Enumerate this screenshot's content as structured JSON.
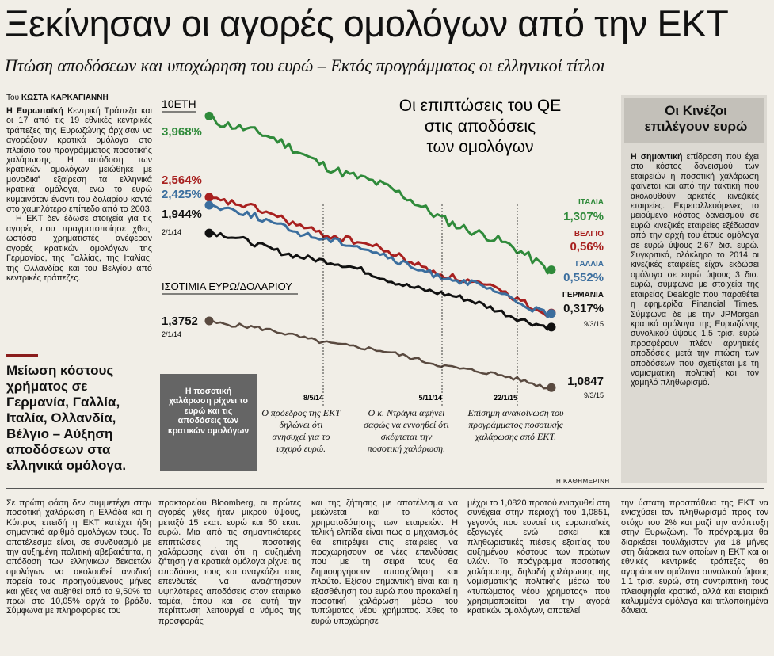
{
  "headline": "Ξεκίνησαν οι αγορές ομολόγων από την ΕΚΤ",
  "subheadline": "Πτώση αποδόσεων και υποχώρηση του ευρώ – Εκτός προγράμματος οι ελληνικοί τίτλοι",
  "byline": {
    "prefix": "Του ",
    "author": "ΚΩΣΤΑ ΚΑΡΚΑΓΙΑΝΝΗ"
  },
  "lead": {
    "p1_bold": "Η Ευρωπαϊκή",
    "p1": " Κεντρική Τράπεζα και οι 17 από τις 19 εθνικές κεντρικές τράπεζες της Ευρωζώνης άρχισαν να αγοράζουν κρατικά ομόλογα στο πλαίσιο του προγράμματος ποσοτικής χαλάρωσης. Η απόδοση των κρατικών ομολόγων μειώθηκε με μοναδική εξαίρεση τα ελληνικά κρατικά ομόλογα, ενώ το ευρώ κυμαινόταν έναντι του δολαρίου κοντά στο χαμηλότερο επίπεδο από το 2003.",
    "p2": "Η ΕΚΤ δεν έδωσε στοιχεία για τις αγορές που πραγματοποίησε χθες, ωστόσο χρηματιστές ανέφεραν αγορές κρατικών ομολόγων της Γερμανίας, της Γαλλίας, της Ιταλίας, της Ολλανδίας και του Βελγίου από κεντρικές τράπεζες."
  },
  "pullquote": "Μείωση κόστους χρήματος σε Γερμανία, Γαλλία, Ιταλία, Ολλανδία, Βέλγιο – Αύξηση αποδόσεων στα ελληνικά ομόλογα.",
  "sidebar": {
    "title": "Οι Κινέζοι επιλέγουν ευρώ",
    "text_bold": "Η σημαντική",
    "text": " επίδραση που έχει στο κόστος δανεισμού των εταιρειών η ποσοτική χαλάρωση φαίνεται και από την τακτική που ακολουθούν αρκετές κινεζικές εταιρείες. Εκμεταλλευόμενες το μειούμενο κόστος δανεισμού σε ευρώ κινεζικές εταιρείες εξέδωσαν από την αρχή του έτους ομόλογα σε ευρώ ύψους 2,67 δισ. ευρώ. Συγκριτικά, ολόκληρο το 2014 οι κινεζικές εταιρείες είχαν εκδώσει ομόλογα σε ευρώ ύψους 3 δισ. ευρώ, σύμφωνα με στοιχεία της εταιρείας Dealogic που παραθέτει η εφημερίδα Financial Times. Σύμφωνα δε με την JPMorgan κρατικά ομόλογα της Ευρωζώνης συνολικού ύψους 1,5 τρισ. ευρώ προσφέρουν πλέον αρνητικές αποδόσεις μετά την πτώση των αποδόσεων που σχετίζεται με τη νομισματική πολιτική και τον χαμηλό πληθωρισμό."
  },
  "body": {
    "c1": "Σε πρώτη φάση δεν συμμετέχει στην ποσοτική χαλάρωση η Ελλάδα και η Κύπρος επειδή η ΕΚΤ κατέχει ήδη σημαντικό αριθμό ομολόγων τους. Το αποτέλεσμα είναι, σε συνδυασμό με την αυξημένη πολιτική αβεβαιότητα, η απόδοση των ελληνικών δεκαετών ομολόγων να ακολουθεί ανοδική πορεία τους προηγούμενους μήνες και χθες να αυξηθεί από το 9,50% το πρωί στο 10,05% αργά το βράδυ. Σύμφωνα με πληροφορίες του",
    "c2": "πρακτορείου Bloomberg, οι πρώτες αγορές χθες ήταν μικρού ύψους, μεταξύ 15 εκατ. ευρώ και 50 εκατ. ευρώ. Μια από τις σημαντικότερες επιπτώσεις της ποσοτικής χαλάρωσης είναι ότι η αυξημένη ζήτηση για κρατικά ομόλογα ρίχνει τις αποδόσεις τους και αναγκάζει τους επενδυτές να αναζητήσουν υψηλότερες αποδόσεις στον εταιρικό τομέα, όπου και σε αυτή την περίπτωση λειτουργεί ο νόμος της προσφοράς",
    "c3": "και της ζήτησης με αποτέλεσμα να μειώνεται και το κόστος χρηματοδότησης των εταιρειών. Η τελική ελπίδα είναι πως ο μηχανισμός θα επιτρέψει στις εταιρείες να προχωρήσουν σε νέες επενδύσεις που με τη σειρά τους θα δημιουργήσουν απασχόληση και πλούτο. Εξίσου σημαντική είναι και η εξασθένηση του ευρώ που προκαλεί η ποσοτική χαλάρωση μέσω του τυπώματος νέου χρήματος. Χθες το ευρώ υποχώρησε",
    "c4": "μέχρι το 1,0820 προτού ενισχυθεί στη συνέχεια στην περιοχή του 1,0851, γεγονός που ευνοεί τις ευρωπαϊκές εξαγωγές ενώ ασκεί και πληθωριστικές πιέσεις εξαιτίας του αυξημένου κόστους των πρώτων υλών. Το πρόγραμμα ποσοτικής χαλάρωσης, δηλαδή χαλάρωσης της νομισματικής πολιτικής μέσω του «τυπώματος νέου χρήματος» που χρησιμοποιείται για την αγορά κρατικών ομολόγων, αποτελεί",
    "c5": "την ύστατη προσπάθεια της ΕΚΤ να ενισχύσει τον πληθωρισμό προς τον στόχο του 2% και μαζί την ανάπτυξη στην Ευρωζώνη. Το πρόγραμμα θα διαρκέσει τουλάχιστον για 18 μήνες στη διάρκεια των οποίων η ΕΚΤ και οι εθνικές κεντρικές τράπεζες θα αγοράσουν ομόλογα συνολικού ύψους 1,1 τρισ. ευρώ, στη συντριπτική τους πλειοψηφία κρατικά, αλλά και εταιρικά καλυμμένα ομόλογα και τιτλοποιημένα δάνεια."
  },
  "credit": "Η ΚΑΘΗΜΕΡΙΝΗ",
  "chart_data": [
    {
      "type": "line",
      "title": "Οι επιπτώσεις του QE στις αποδόσεις των ομολόγων",
      "title_lines": [
        "Οι επιπτώσεις του QE",
        "στις αποδόσεις",
        "των ομολόγων"
      ],
      "ylabel": "10ΕΤΗ",
      "start_date": "2/1/14",
      "end_date": "9/3/15",
      "series": [
        {
          "name": "ΙΤΑΛΙΑ",
          "start": 3.968,
          "end": 1.307,
          "start_label": "3,968%",
          "end_label": "1,307%",
          "color": "#2f8a3a"
        },
        {
          "name": "ΒΕΛΓΙΟ",
          "start": 2.564,
          "end": 0.56,
          "start_label": "2,564%",
          "end_label": "0,56%",
          "color": "#a8201f"
        },
        {
          "name": "ΓΑΛΛΙΑ",
          "start": 2.425,
          "end": 0.552,
          "start_label": "2,425%",
          "end_label": "0,552%",
          "color": "#3b6e9e"
        },
        {
          "name": "ΓΕΡΜΑΝΙΑ",
          "start": 1.944,
          "end": 0.317,
          "start_label": "1,944%",
          "end_label": "0,317%",
          "color": "#111111"
        }
      ]
    },
    {
      "type": "line",
      "ylabel": "ΙΣΟΤΙΜΙΑ ΕΥΡΩ/ΔΟΛΑΡΙΟΥ",
      "start_date": "2/1/14",
      "end_date": "9/3/15",
      "series": [
        {
          "start": 1.3752,
          "end": 1.0847,
          "start_label": "1,3752",
          "end_label": "1,0847",
          "color": "#5a4a40"
        }
      ]
    }
  ],
  "annotations": {
    "box": "Η ποσοτική χαλάρωση ρίχνει το ευρώ και τις αποδόσεις των κρατικών ομολόγων",
    "events": [
      {
        "date": "8/5/14",
        "text": "Ο πρόεδρος της ΕΚΤ δηλώνει ότι ανησυχεί για το ισχυρό ευρώ."
      },
      {
        "date": "5/11/14",
        "text": "Ο κ. Ντράγκι αφήνει σαφώς να εννοηθεί ότι σκέφτεται την ποσοτική χαλάρωση."
      },
      {
        "date": "22/1/15",
        "text": "Επίσημη ανακοίνωση του προγράμματος ποσοτικής χαλάρωσης από ΕΚΤ."
      }
    ]
  }
}
